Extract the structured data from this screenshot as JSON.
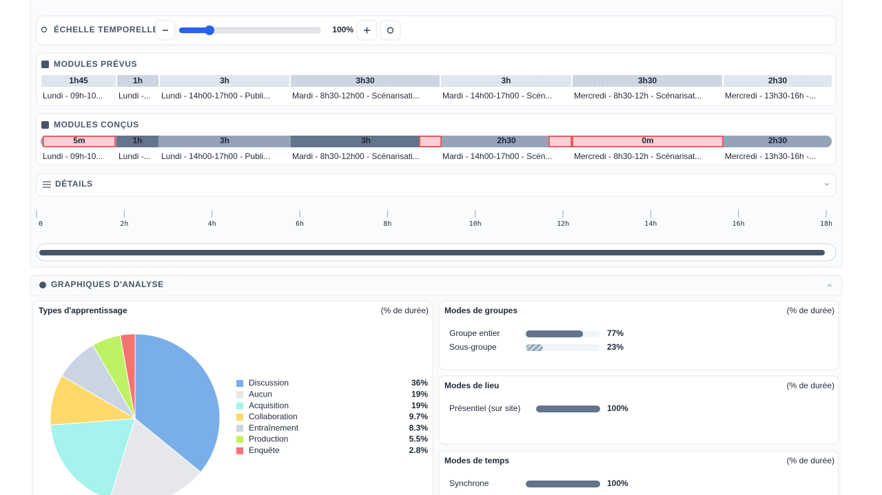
{
  "timeline": {
    "zoom": {
      "label": "ÉCHELLE TEMPORELLE",
      "value": "100%"
    },
    "planned": {
      "title": "MODULES PRÉVUS",
      "durations": [
        "1h45",
        "1h",
        "3h",
        "3h30",
        "3h",
        "3h30",
        "2h30"
      ],
      "labels": [
        "Lundi - 09h-10...",
        "Lundi -...",
        "Lundi - 14h00-17h00 - Publi...",
        "Mardi - 8h30-12h00 - Scénarisati...",
        "Mardi - 14h00-17h00 - Scén...",
        "Mercredi - 8h30-12h - Scénarisat...",
        "Mercredi - 13h30-16h -..."
      ]
    },
    "designed": {
      "title": "MODULES CONÇUS",
      "durations": [
        "5m",
        "1h",
        "3h",
        "3h",
        "2h30",
        "0m",
        "2h30"
      ],
      "labels": [
        "Lundi - 09h-10...",
        "Lundi -...",
        "Lundi - 14h00-17h00 - Publi...",
        "Mardi - 8h30-12h00 - Scénarisati...",
        "Mardi - 14h00-17h00 - Scén...",
        "Mercredi - 8h30-12h - Scénarisat...",
        "Mercredi - 13h30-16h -..."
      ]
    },
    "details": "DÉTAILS",
    "axis": {
      "xlim": [
        0,
        18
      ],
      "xticks": [
        0,
        {
          "value": 2,
          "label": "2h"
        },
        {
          "value": 4,
          "label": "4h"
        },
        {
          "value": 6,
          "label": "6h"
        },
        {
          "value": 8,
          "label": "8h"
        },
        {
          "value": 10,
          "label": "10h"
        },
        {
          "value": 12,
          "label": "12h"
        },
        {
          "value": 14,
          "label": "14h"
        },
        {
          "value": 16,
          "label": "16h"
        },
        {
          "value": 18,
          "label": "18h"
        }
      ]
    }
  },
  "analysis": {
    "title": "GRAPHIQUES D'ANALYSE",
    "charts": [
      {
        "type": "pie",
        "title": "Types d'apprentissage",
        "subtitle": "(% de durée)",
        "categories": [
          "Discussion",
          "Aucun",
          "Acquisition",
          "Collaboration",
          "Entraînement",
          "Production",
          "Enquête"
        ],
        "values": [
          36,
          19,
          19,
          9.7,
          8.3,
          5.5,
          2.8
        ],
        "value_labels": [
          "36%",
          "19%",
          "19%",
          "9.7%",
          "8.3%",
          "5.5%",
          "2.8%"
        ],
        "colors": [
          "#7aaee8",
          "#e5e7eb",
          "#a5f3ec",
          "#fcd96a",
          "#cbd5e1",
          "#bef264",
          "#f87171"
        ]
      },
      {
        "type": "bar",
        "title": "Modes de groupes",
        "subtitle": "(% de durée)",
        "categories": [
          "Groupe entier",
          "Sous-groupe"
        ],
        "values": [
          77,
          23
        ],
        "value_labels": [
          "77%",
          "23%"
        ],
        "xlim": [
          0,
          100
        ],
        "color": "#64748b"
      },
      {
        "type": "bar",
        "title": "Modes de lieu",
        "subtitle": "(% de durée)",
        "categories": [
          "Présentiel (sur site)"
        ],
        "values": [
          100
        ],
        "value_labels": [
          "100%"
        ],
        "xlim": [
          0,
          100
        ],
        "color": "#64748b"
      },
      {
        "type": "bar",
        "title": "Modes de temps",
        "subtitle": "(% de durée)",
        "categories": [
          "Synchrone"
        ],
        "values": [
          100
        ],
        "value_labels": [
          "100%"
        ],
        "xlim": [
          0,
          100
        ],
        "color": "#64748b"
      }
    ]
  }
}
